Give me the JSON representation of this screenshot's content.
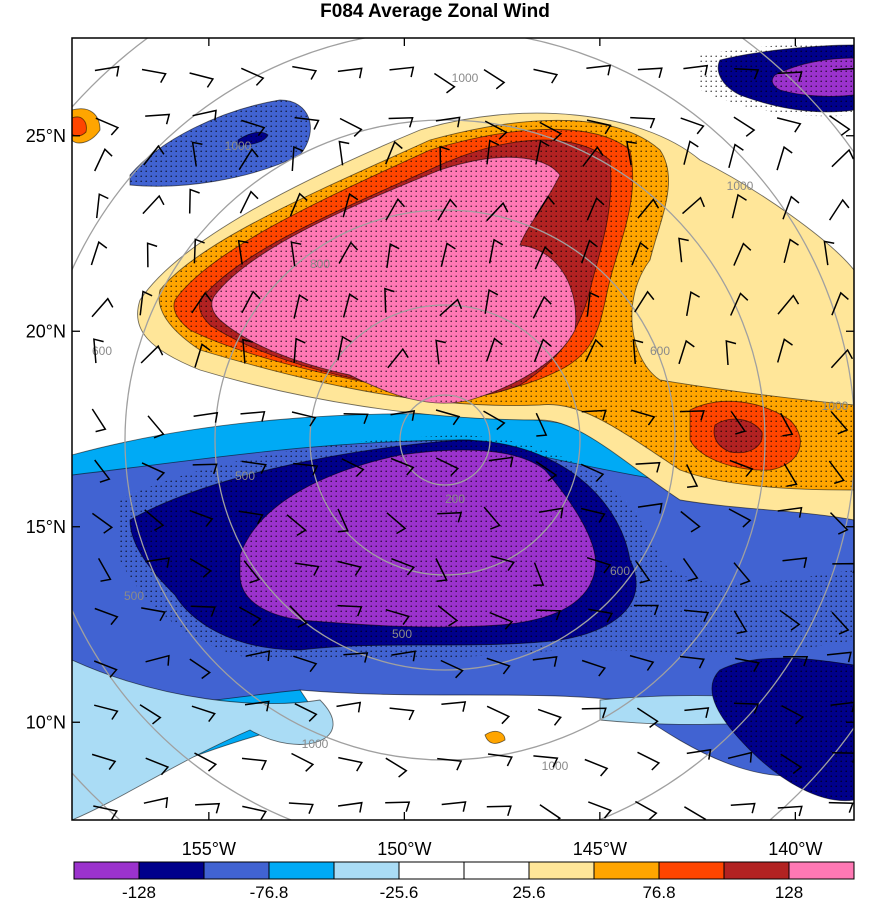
{
  "title": "F084 Average Zonal Wind",
  "chart_data": {
    "type": "heatmap",
    "title": "F084 Average Zonal Wind",
    "xlabel": "",
    "ylabel": "",
    "x_ticks": [
      "155°W",
      "150°W",
      "145°W",
      "140°W"
    ],
    "x_tick_values": [
      -155,
      -150,
      -145,
      -140
    ],
    "y_ticks": [
      "25°N",
      "20°N",
      "15°N",
      "10°N"
    ],
    "y_tick_values": [
      25,
      20,
      15,
      10
    ],
    "xlim": [
      -158.5,
      -138.5
    ],
    "ylim": [
      7.5,
      27.5
    ],
    "colorbar": {
      "labels": [
        "-128",
        "-76.8",
        "-25.6",
        "25.6",
        "76.8",
        "128"
      ],
      "levels": [
        -153.6,
        -128,
        -102.4,
        -76.8,
        -51.2,
        -25.6,
        0,
        25.6,
        51.2,
        76.8,
        102.4,
        128,
        153.6
      ],
      "colors": [
        "#9b32cd",
        "#00008b",
        "#4163d2",
        "#00aaf5",
        "#aadcf5",
        "#ffffff",
        "#ffffff",
        "#ffe699",
        "#ffa500",
        "#ff4500",
        "#b22222",
        "#ff78b4"
      ]
    },
    "features": [
      {
        "name": "positive jet core",
        "value": 140,
        "center": [
          -151.5,
          21
        ]
      },
      {
        "name": "negative core",
        "value": -140,
        "center": [
          -150,
          13.5
        ]
      },
      {
        "name": "secondary positive max",
        "value": 130,
        "center": [
          -142.5,
          17
        ]
      }
    ],
    "contour_labels": [
      "200",
      "500",
      "600",
      "800",
      "1000"
    ],
    "overlays": [
      "wind barbs",
      "stippling (significance)",
      "gray range rings"
    ],
    "grid": false,
    "legend": "bottom"
  }
}
